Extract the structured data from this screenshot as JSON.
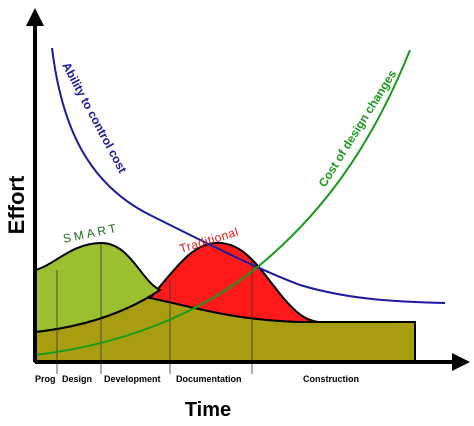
{
  "axes": {
    "y_label": "Effort",
    "x_label": "Time"
  },
  "phases": [
    "Prog",
    "Design",
    "Development",
    "Documentation",
    "Construction"
  ],
  "curves": {
    "ability": "Ability to control cost",
    "cost": "Cost of design changes",
    "smart": "SMART",
    "traditional": "Traditional"
  },
  "colors": {
    "ability_curve": "#1a1aa0",
    "cost_curve": "#1a9a1a",
    "smart_fill": "#9ac030",
    "traditional_fill": "#ff1a1a",
    "base_fill": "#a89c10",
    "axis": "#000000",
    "smart_label": "#1a6a1a",
    "traditional_label": "#e01a1a"
  }
}
